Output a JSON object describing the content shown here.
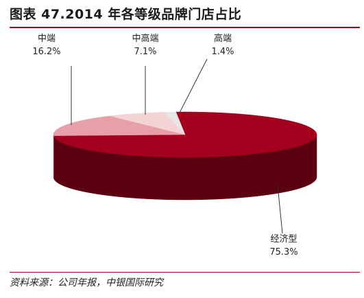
{
  "title": "图表 47.2014 年各等级品牌门店占比",
  "source": "资料来源：公司年报，中银国际研究",
  "chart_data": {
    "type": "pie",
    "style": "3d",
    "slices": [
      {
        "name": "经济型",
        "value": 75.3,
        "label": "75.3%",
        "color": "#a4001d",
        "side_color": "#5a0010"
      },
      {
        "name": "中端",
        "value": 16.2,
        "label": "16.2%",
        "color": "#e7a0a8",
        "side_color": "#c27a84"
      },
      {
        "name": "中高端",
        "value": 7.1,
        "label": "7.1%",
        "color": "#f4d3d6",
        "side_color": "#d8aeb2"
      },
      {
        "name": "高端",
        "value": 1.4,
        "label": "1.4%",
        "color": "#e6e6e6",
        "side_color": "#b9b9b9"
      }
    ]
  }
}
